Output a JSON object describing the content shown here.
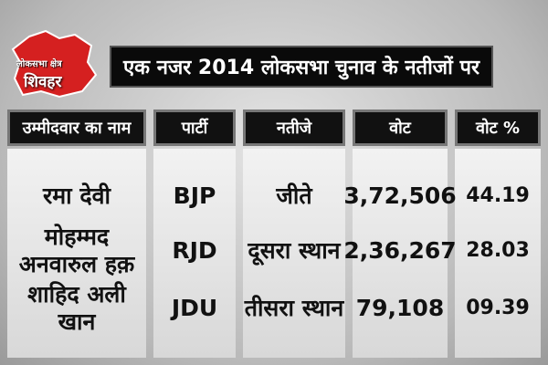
{
  "header": {
    "badge": {
      "line1": "लोकसभा क्षेत्र",
      "line2": "शिवहर"
    },
    "title": "एक नजर 2014 लोकसभा चुनाव के नतीजों पर"
  },
  "table": {
    "columns": [
      "उम्मीदवार का नाम",
      "पार्टी",
      "नतीजे",
      "वोट",
      "वोट %"
    ],
    "rows": [
      [
        [
          "रमा देवी"
        ],
        "BJP",
        "जीते",
        "3,72,506",
        "44.19"
      ],
      [
        [
          "मोहम्मद",
          "अनवारुल हक़"
        ],
        "RJD",
        "दूसरा स्थान",
        "2,36,267",
        "28.03"
      ],
      [
        [
          "शाहिद अली खान"
        ],
        "JDU",
        "तीसरा स्थान",
        "79,108",
        "09.39"
      ]
    ]
  }
}
